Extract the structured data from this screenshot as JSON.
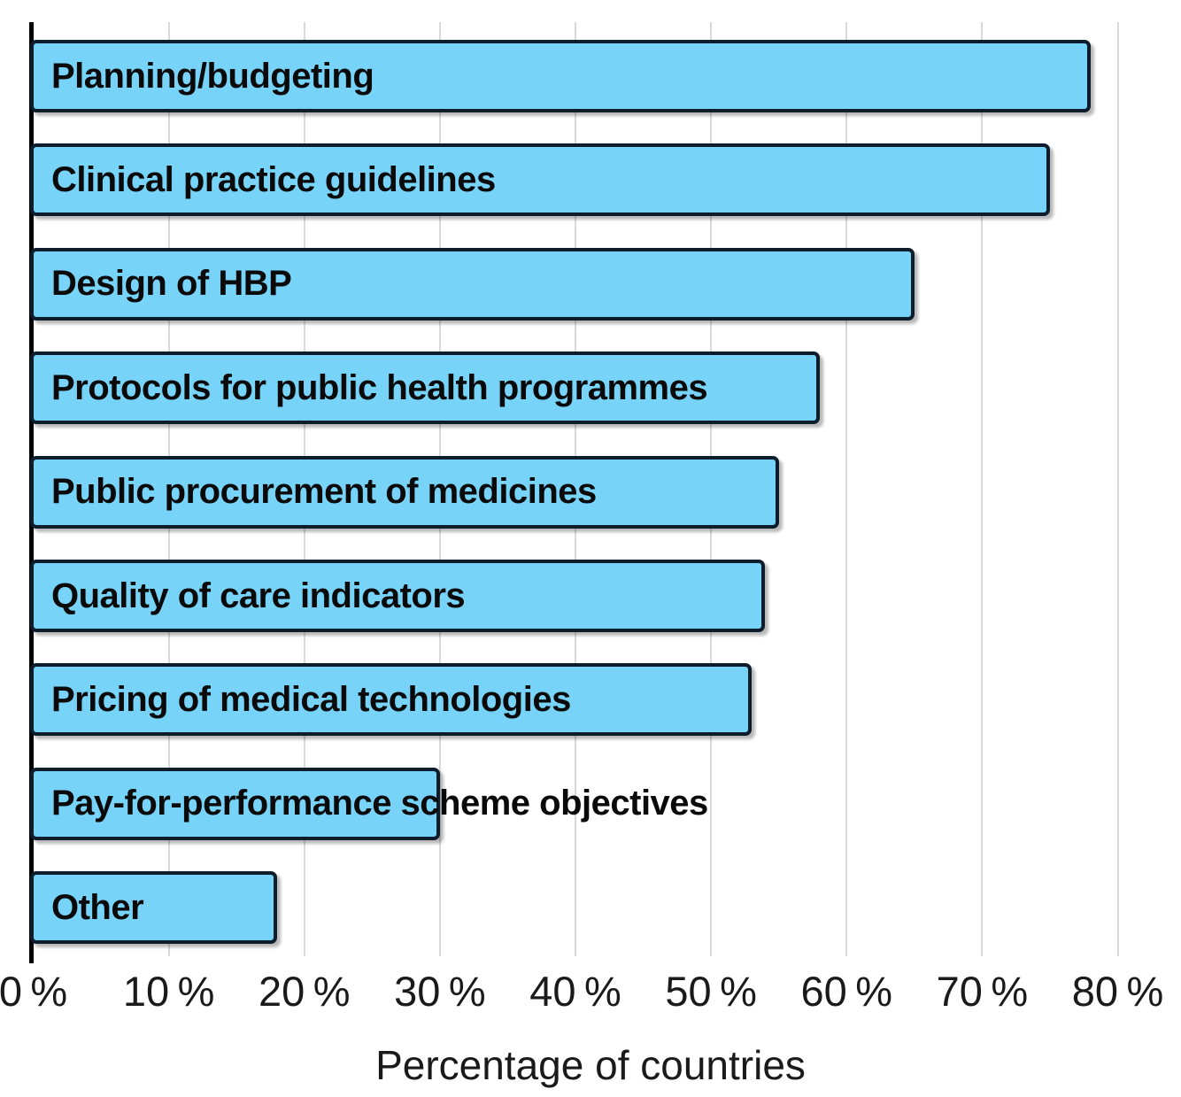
{
  "chart_data": {
    "type": "bar",
    "orientation": "horizontal",
    "title": "",
    "categories": [
      "Planning/budgeting",
      "Clinical practice guidelines",
      "Design of HBP",
      "Protocols for public health programmes",
      "Public procurement of medicines",
      "Quality of care indicators",
      "Pricing of medical technologies",
      "Pay-for-performance scheme objectives",
      "Other"
    ],
    "values": [
      78,
      75,
      65,
      58,
      55,
      54,
      53,
      30,
      18
    ],
    "unit": "%",
    "xlabel": "Percentage of countries",
    "ylabel": "",
    "xlim": [
      0,
      80
    ],
    "xticks": [
      0,
      10,
      20,
      30,
      40,
      50,
      60,
      70,
      80
    ],
    "xtick_labels": [
      "0 %",
      "10 %",
      "20 %",
      "30 %",
      "40 %",
      "50 %",
      "60 %",
      "70 %",
      "80 %"
    ],
    "grid": "vertical-only",
    "legend": "none",
    "label_position": "inside-bar-left",
    "colors": {
      "bar_fill": "#78d3f8",
      "bar_border": "#0d1d2b",
      "gridline": "#d9d9d9",
      "axis_line": "#000000",
      "text": "#1a1a1a"
    }
  }
}
